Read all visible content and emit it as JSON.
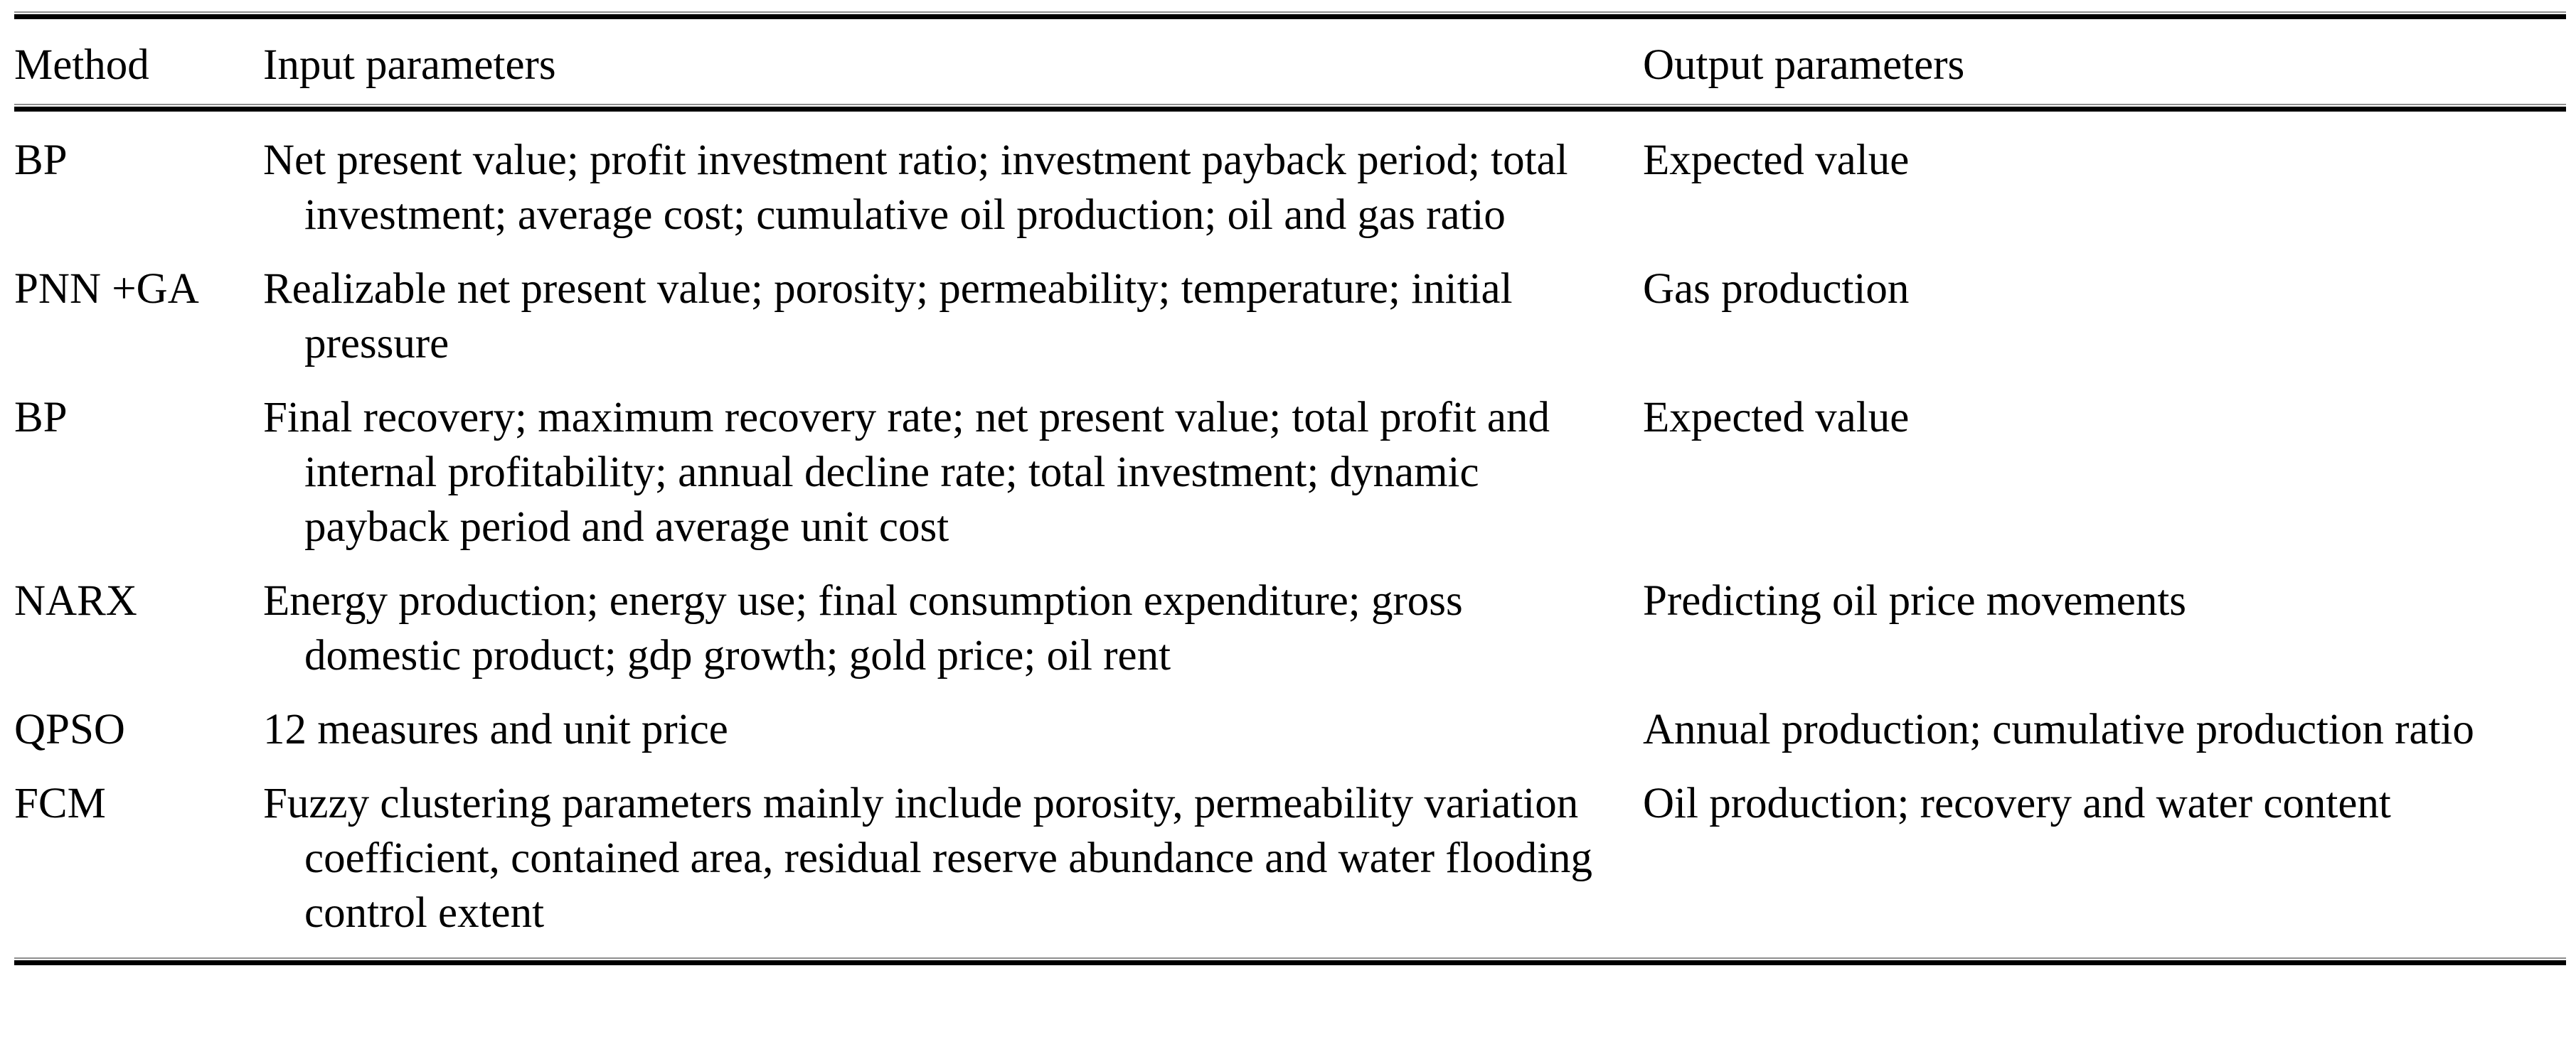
{
  "table": {
    "columns": [
      {
        "key": "method",
        "label": "Method"
      },
      {
        "key": "input",
        "label": "Input parameters"
      },
      {
        "key": "output",
        "label": "Output parameters"
      }
    ],
    "rows": [
      {
        "method": "BP",
        "input": "Net present value; profit investment ratio; investment payback period; total investment; average cost; cumulative oil production; oil and gas ratio",
        "output": "Expected value"
      },
      {
        "method": "PNN +GA",
        "input": "Realizable net present value; porosity; permeability; temperature; initial pressure",
        "output": "Gas production"
      },
      {
        "method": "BP",
        "input": "Final recovery; maximum recovery rate; net present value; total profit and internal profitability; annual decline rate; total investment; dynamic payback period and average unit cost",
        "output": "Expected value"
      },
      {
        "method": "NARX",
        "input": "Energy production; energy use; final consumption expenditure; gross domestic product; gdp growth; gold price; oil rent",
        "output": "Predicting oil price movements"
      },
      {
        "method": "QPSO",
        "input": "12 measures and unit price",
        "output": "Annual production; cumulative production ratio"
      },
      {
        "method": "FCM",
        "input": "Fuzzy clustering parameters mainly include porosity, permeability variation coefficient, contained area, residual reserve abundance and water flooding control extent",
        "output": "Oil production; recovery and water content"
      }
    ],
    "colors": {
      "text": "#000000",
      "background": "#ffffff",
      "rule": "#000000"
    }
  }
}
